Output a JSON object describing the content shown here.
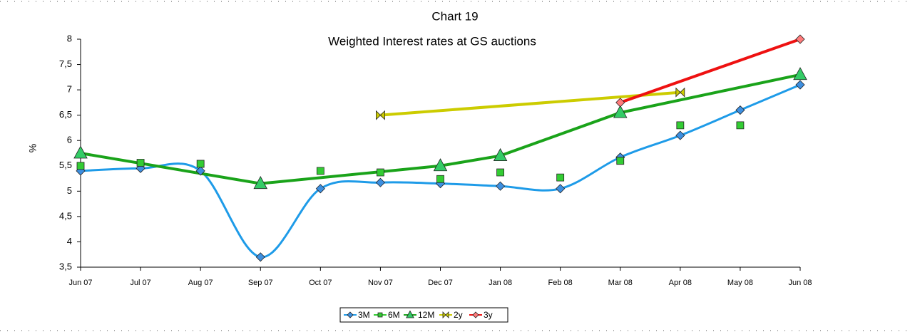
{
  "chart_data": {
    "type": "line",
    "title": "Chart 19",
    "subtitle": "Weighted Interest rates at GS auctions",
    "y_label": "%",
    "categories": [
      "Jun 07",
      "Jul 07",
      "Aug  07",
      "Sep 07",
      "Oct 07",
      "Nov  07",
      "Dec 07",
      "Jan 08",
      "Feb 08",
      "Mar 08",
      "Apr 08",
      "May 08",
      "Jun 08"
    ],
    "series": [
      {
        "name": "3M",
        "color": "#1e9be8",
        "marker": "diamond",
        "smooth": true,
        "values": [
          5.4,
          5.45,
          5.4,
          3.7,
          5.05,
          5.17,
          5.15,
          5.1,
          5.05,
          5.67,
          6.1,
          6.6,
          7.1
        ]
      },
      {
        "name": "6M",
        "color": "#33cc33",
        "marker": "square",
        "line": false,
        "values": [
          5.5,
          5.56,
          5.54,
          null,
          5.4,
          5.37,
          5.24,
          5.37,
          5.27,
          5.6,
          6.3,
          6.3,
          null
        ]
      },
      {
        "name": "12M",
        "color": "#1aa31a",
        "marker": "triangle",
        "values": [
          5.75,
          null,
          null,
          5.15,
          null,
          null,
          5.5,
          5.7,
          null,
          6.55,
          null,
          null,
          7.3
        ]
      },
      {
        "name": "2y",
        "color": "#cccc00",
        "marker": "bowtie",
        "values": [
          null,
          null,
          null,
          null,
          null,
          6.5,
          null,
          null,
          null,
          null,
          6.95,
          null,
          null
        ]
      },
      {
        "name": "3y",
        "color": "#ee1111",
        "marker": "diamond",
        "values": [
          null,
          null,
          null,
          null,
          null,
          null,
          null,
          null,
          null,
          6.75,
          null,
          null,
          8.0
        ]
      }
    ],
    "span_gaps": true,
    "ylim": [
      3.5,
      8
    ],
    "yticks": [
      {
        "value": 3.5,
        "label": "3,5"
      },
      4,
      {
        "value": 4.5,
        "label": "4,5"
      },
      5,
      {
        "value": 5.5,
        "label": "5,5"
      },
      6,
      {
        "value": 6.5,
        "label": "6,5"
      },
      7,
      {
        "value": 7.5,
        "label": "7,5"
      },
      8
    ],
    "legend": "bottom"
  }
}
